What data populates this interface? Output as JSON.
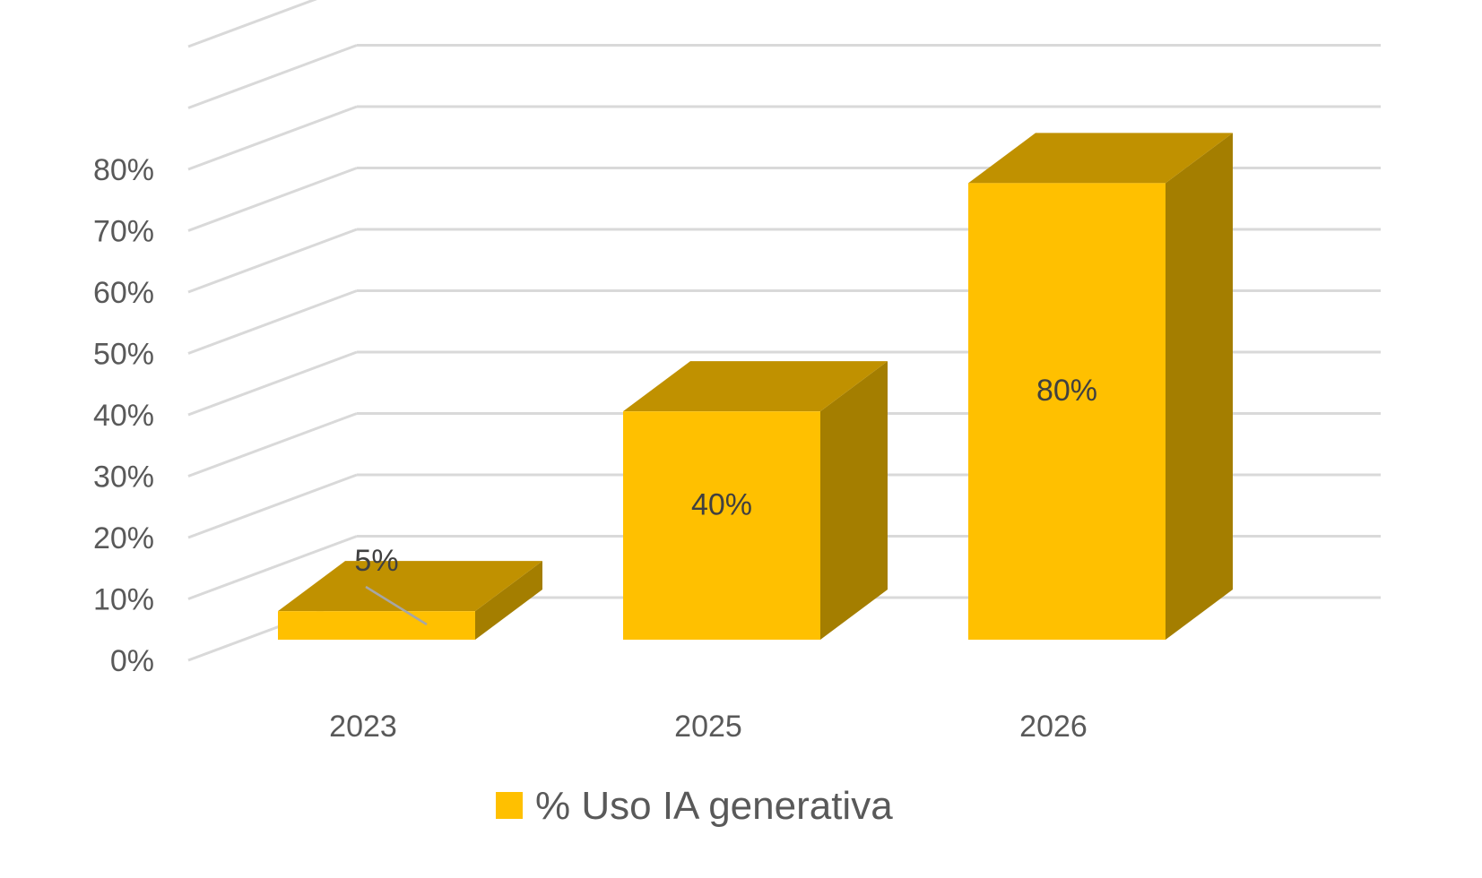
{
  "chart_data": {
    "type": "bar",
    "style": "3d-column",
    "categories": [
      "2023",
      "2025",
      "2026"
    ],
    "series": [
      {
        "name": "% Uso IA generativa",
        "values": [
          5,
          40,
          80
        ],
        "value_labels": [
          "5%",
          "40%",
          "80%"
        ],
        "color": "#FFC000",
        "top_color": "#C09100",
        "side_color": "#A47E00"
      }
    ],
    "y_ticks": [
      "0%",
      "10%",
      "20%",
      "30%",
      "40%",
      "50%",
      "60%",
      "70%",
      "80%"
    ],
    "ylim": [
      0,
      100
    ],
    "grid": true,
    "legend": "bottom",
    "gridline_color": "#D9D9D9"
  }
}
